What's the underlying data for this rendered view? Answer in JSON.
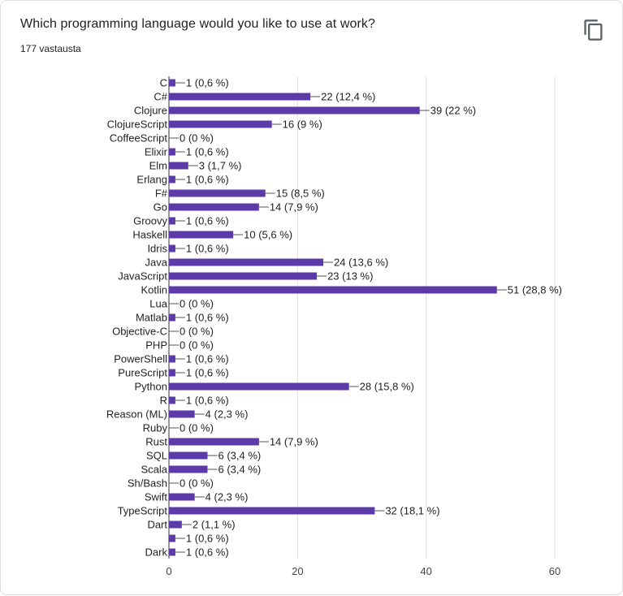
{
  "header": {
    "title": "Which programming language would you like to use at work?",
    "responses": "177 vastausta",
    "copy_icon": "copy-icon"
  },
  "colors": {
    "bar": "#5c3ba8",
    "grid": "#e0e0e0",
    "axis": "#333333"
  },
  "chart_data": {
    "type": "bar",
    "orientation": "horizontal",
    "title": "Which programming language would you like to use at work?",
    "xlim": [
      0,
      60
    ],
    "xticks": [
      "0",
      "20",
      "40",
      "60"
    ],
    "grid": true,
    "categories": [
      "C",
      "C#",
      "Clojure",
      "ClojureScript",
      "CoffeeScript",
      "Elixir",
      "Elm",
      "Erlang",
      "F#",
      "Go",
      "Groovy",
      "Haskell",
      "Idris",
      "Java",
      "JavaScript",
      "Kotlin",
      "Lua",
      "Matlab",
      "Objective-C",
      "PHP",
      "PowerShell",
      "PureScript",
      "Python",
      "R",
      "Reason (ML)",
      "Ruby",
      "Rust",
      "SQL",
      "Scala",
      "Sh/Bash",
      "Swift",
      "TypeScript",
      "Dart",
      "",
      "Dark"
    ],
    "values": [
      1,
      22,
      39,
      16,
      0,
      1,
      3,
      1,
      15,
      14,
      1,
      10,
      1,
      24,
      23,
      51,
      0,
      1,
      0,
      0,
      1,
      1,
      28,
      1,
      4,
      0,
      14,
      6,
      6,
      0,
      4,
      32,
      2,
      1,
      1
    ],
    "value_labels": [
      "1 (0,6 %)",
      "22 (12,4 %)",
      "39 (22 %)",
      "16 (9 %)",
      "0 (0 %)",
      "1 (0,6 %)",
      "3 (1,7 %)",
      "1 (0,6 %)",
      "15 (8,5 %)",
      "14 (7,9 %)",
      "1 (0,6 %)",
      "10 (5,6 %)",
      "1 (0,6 %)",
      "24 (13,6 %)",
      "23 (13 %)",
      "51 (28,8 %)",
      "0 (0 %)",
      "1 (0,6 %)",
      "0 (0 %)",
      "0 (0 %)",
      "1 (0,6 %)",
      "1 (0,6 %)",
      "28 (15,8 %)",
      "1 (0,6 %)",
      "4 (2,3 %)",
      "0 (0 %)",
      "14 (7,9 %)",
      "6 (3,4 %)",
      "6 (3,4 %)",
      "0 (0 %)",
      "4 (2,3 %)",
      "32 (18,1 %)",
      "2 (1,1 %)",
      "1 (0,6 %)",
      "1 (0,6 %)"
    ]
  }
}
